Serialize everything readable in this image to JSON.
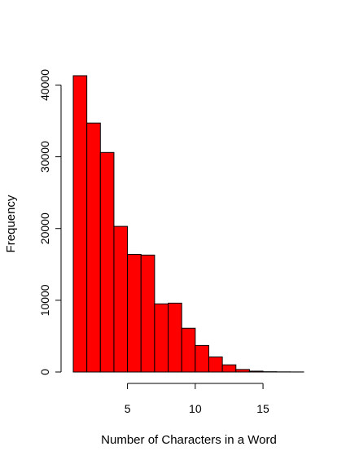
{
  "chart_data": {
    "type": "bar",
    "subtype": "histogram",
    "title": "",
    "xlabel": "Number of Characters in a Word",
    "ylabel": "Frequency",
    "bin_edges": [
      1,
      2,
      3,
      4,
      5,
      6,
      7,
      8,
      9,
      10,
      11,
      12,
      13,
      14,
      15,
      16,
      17,
      18
    ],
    "values": [
      41300,
      34700,
      30600,
      20300,
      16400,
      16300,
      9500,
      9600,
      6100,
      3700,
      2100,
      1000,
      350,
      120,
      40,
      20,
      10
    ],
    "xlim": [
      1,
      18
    ],
    "ylim": [
      0,
      41300
    ],
    "x_ticks": [
      5,
      10,
      15
    ],
    "y_ticks": [
      0,
      10000,
      20000,
      30000,
      40000
    ],
    "x_tick_labels": [
      "5",
      "10",
      "15"
    ],
    "y_tick_labels": [
      "0",
      "10000",
      "20000",
      "30000",
      "40000"
    ],
    "bar_color": "#ff0000",
    "grid": false,
    "legend": "none"
  }
}
